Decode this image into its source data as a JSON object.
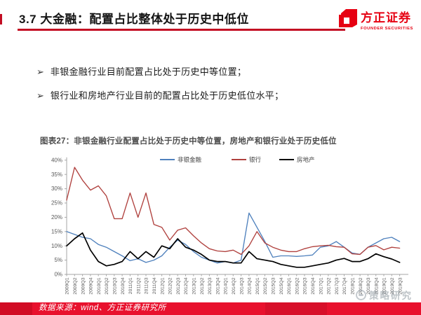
{
  "slide": {
    "header": {
      "title": "3.7 大金融：配置占比整体处于历史中低位",
      "accent_color": "#c30d23"
    },
    "logo": {
      "name": "方正证券",
      "subtitle": "FOUNDER SECURITIES",
      "color": "#e60012"
    },
    "bullets": {
      "marker": "➢",
      "items": [
        "非银金融行业目前配置占比处于历史中等位置；",
        "银行业和房地产行业目前的配置占比处于历史低位水平；"
      ]
    },
    "watermark": {
      "text": "策略研究"
    },
    "footer": {
      "text": "数据来源：wind、方正证券研究所",
      "bar_color": "#e8112d"
    }
  },
  "chart_data": {
    "type": "line",
    "title": "图表27：非银金融行业配置占比处于历史中等位置，房地产和银行业处于历史低位",
    "categories": [
      "2009Q1",
      "2009Q2",
      "2009Q3",
      "2009Q4",
      "2010Q1",
      "2010Q2",
      "2010Q3",
      "2010Q4",
      "2011Q1",
      "2011Q2",
      "2011Q3",
      "2011Q4",
      "2012Q1",
      "2012Q2",
      "2012Q3",
      "2012Q4",
      "2013Q1",
      "2013Q2",
      "2013Q3",
      "2013Q4",
      "2014Q1",
      "2014Q2",
      "2014Q3",
      "2014Q4",
      "2015Q1",
      "2015Q2",
      "2015Q3",
      "2015Q4",
      "2016Q1",
      "2016Q2",
      "2016Q3",
      "2016Q4",
      "2017Q1",
      "2017Q2",
      "2017Q3",
      "2017Q4",
      "2018Q1",
      "2018Q2",
      "2018Q3",
      "2018Q4",
      "2019Q1",
      "2019Q2",
      "2019Q3"
    ],
    "series": [
      {
        "name": "非银金融",
        "color": "#4f81bd",
        "values": [
          15,
          14,
          13,
          12.5,
          10.5,
          9.5,
          8,
          6.5,
          4.8,
          5.5,
          4.2,
          5,
          6.5,
          9.5,
          12,
          10.5,
          8,
          6,
          5,
          4,
          4.5,
          4,
          5,
          21.5,
          16.5,
          11.5,
          6,
          6.5,
          6.5,
          6.3,
          6.5,
          6.8,
          9.5,
          10,
          11.5,
          9.5,
          7.5,
          7,
          9.5,
          11,
          12.5,
          13,
          11.5
        ]
      },
      {
        "name": "银行",
        "color": "#b0413e",
        "values": [
          26,
          37.5,
          33,
          29.5,
          31,
          27.5,
          19.5,
          19.5,
          28.5,
          20,
          28.5,
          17.5,
          16.5,
          12,
          15.5,
          16.3,
          13.5,
          11,
          9,
          8.2,
          8,
          8.5,
          7,
          10,
          15,
          11,
          9.5,
          8.5,
          8,
          8,
          9,
          9.7,
          10,
          10.2,
          9.7,
          9.5,
          7.2,
          7,
          9.5,
          10.1,
          8.6,
          9.5,
          9.2
        ]
      },
      {
        "name": "房地产",
        "color": "#000000",
        "values": [
          10,
          12.5,
          14.5,
          8.5,
          4.5,
          3,
          3.5,
          4.5,
          8,
          5.5,
          8,
          6,
          10,
          9,
          12.5,
          9.5,
          8.5,
          7,
          5,
          4.5,
          4.5,
          4,
          4,
          8,
          5.5,
          5,
          4.5,
          3.5,
          3,
          2.5,
          2.5,
          3,
          3.5,
          4,
          5,
          5.6,
          4.5,
          4.5,
          5.5,
          7.2,
          6.2,
          5.4,
          4.2
        ]
      }
    ],
    "ylim": [
      0,
      40
    ],
    "ytick_step": 5,
    "ytick_suffix": "%",
    "grid": false,
    "legend_position": "top"
  }
}
